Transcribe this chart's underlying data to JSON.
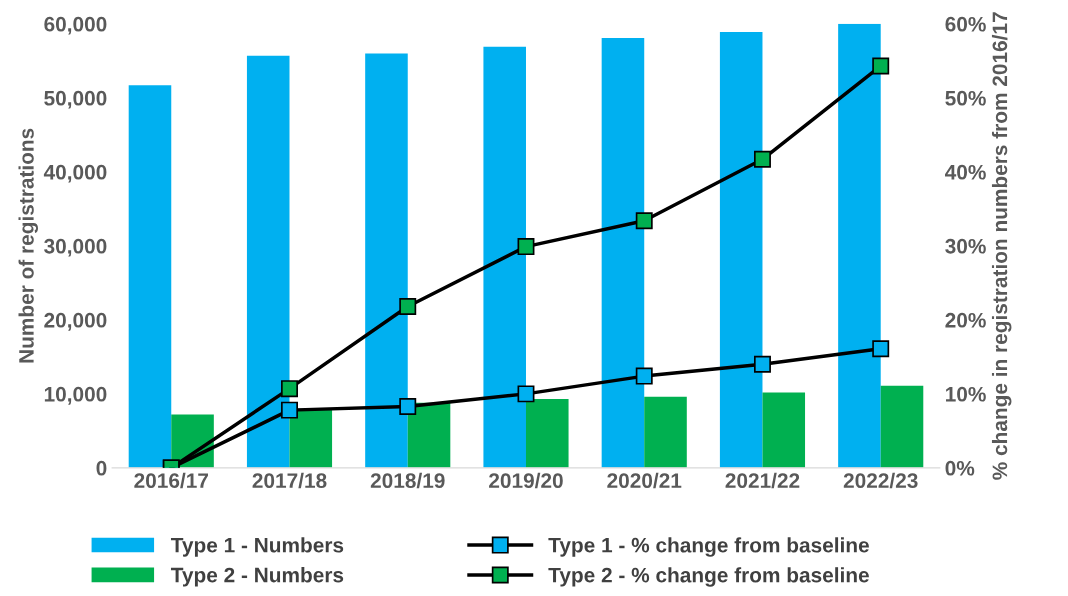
{
  "chart_data": {
    "type": "bar",
    "categories": [
      "2016/17",
      "2017/18",
      "2018/19",
      "2019/20",
      "2020/21",
      "2021/22",
      "2022/23"
    ],
    "ylabel": "Number of registrations",
    "y2label": "% change in registration numbers from 2016/17",
    "ylim": [
      0,
      60000
    ],
    "yticks": [
      {
        "value": 0,
        "label": "0"
      },
      {
        "value": 10000,
        "label": "10,000"
      },
      {
        "value": 20000,
        "label": "20,000"
      },
      {
        "value": 30000,
        "label": "30,000"
      },
      {
        "value": 40000,
        "label": "40,000"
      },
      {
        "value": 50000,
        "label": "50,000"
      },
      {
        "value": 60000,
        "label": "60,000"
      }
    ],
    "y2lim": [
      0,
      60
    ],
    "y2ticks": [
      {
        "value": 0,
        "label": "0%"
      },
      {
        "value": 10,
        "label": "10%"
      },
      {
        "value": 20,
        "label": "20%"
      },
      {
        "value": 30,
        "label": "30%"
      },
      {
        "value": 40,
        "label": "40%"
      },
      {
        "value": 50,
        "label": "50%"
      },
      {
        "value": 60,
        "label": "60%"
      }
    ],
    "grid": false,
    "legend": "bottom",
    "marker": "square",
    "series": [
      {
        "name": "Type 1 - Numbers",
        "color": "#00b0f0",
        "values": [
          51700,
          55700,
          56000,
          56900,
          58100,
          58900,
          60000
        ]
      },
      {
        "name": "Type 2 - Numbers",
        "color": "#00b050",
        "values": [
          7200,
          8000,
          8800,
          9300,
          9600,
          10200,
          11100
        ]
      },
      {
        "name": "Type 1 - % change from baseline",
        "type": "line",
        "axis": "y2",
        "color": "#00b0f0",
        "values": [
          0,
          7.8,
          8.3,
          10.0,
          12.4,
          14.0,
          16.1
        ]
      },
      {
        "name": "Type 2 - % change from baseline",
        "type": "line",
        "axis": "y2",
        "color": "#00b050",
        "values": [
          0,
          10.7,
          21.8,
          29.9,
          33.4,
          41.7,
          54.3
        ]
      }
    ]
  }
}
